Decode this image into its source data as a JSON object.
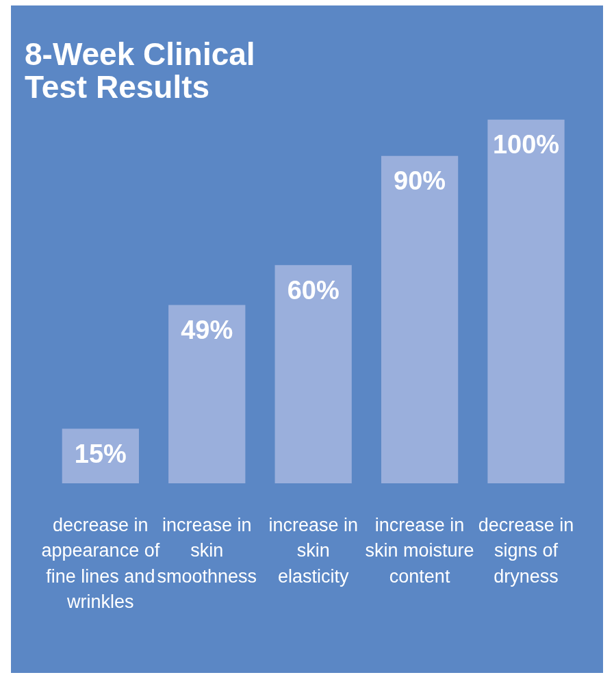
{
  "chart_data": {
    "type": "bar",
    "title": "8-Week Clinical Test Results",
    "categories": [
      "decrease in appearance of fine lines and wrinkles",
      "increase in skin smoothness",
      "increase in skin elasticity",
      "increase in skin moisture content",
      "decrease in signs of dryness"
    ],
    "values": [
      15,
      49,
      60,
      90,
      100
    ],
    "color": "#9aafdc",
    "value_labels": [
      "15%",
      "49%",
      "60%",
      "90%",
      "100%"
    ],
    "tick_labels": "x"
  }
}
